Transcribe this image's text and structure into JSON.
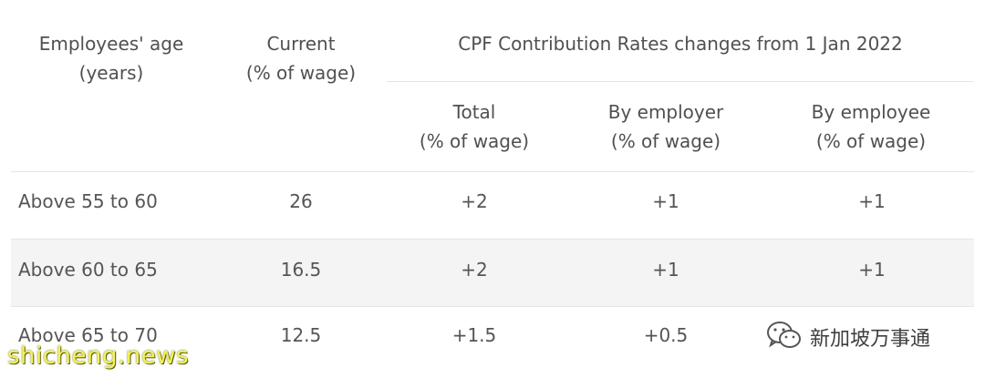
{
  "table": {
    "headers": {
      "age": [
        "Employees' age",
        "(years)"
      ],
      "current": [
        "Current",
        "(% of wage)"
      ],
      "group": "CPF Contribution Rates changes from 1 Jan 2022",
      "total": [
        "Total",
        "(% of wage)"
      ],
      "employer": [
        "By employer",
        "(% of wage)"
      ],
      "employee": [
        "By employee",
        "(% of wage)"
      ]
    },
    "rows": [
      {
        "age": "Above 55 to 60",
        "current": "26",
        "total": "+2",
        "employer": "+1",
        "employee": "+1"
      },
      {
        "age": "Above 60 to 65",
        "current": "16.5",
        "total": "+2",
        "employer": "+1",
        "employee": "+1"
      },
      {
        "age": "Above 65 to 70",
        "current": "12.5",
        "total": "+1.5",
        "employer": "+0.5",
        "employee": ""
      }
    ]
  },
  "overlay": {
    "wechat_account": "新加坡万事通",
    "watermark": "shicheng.news"
  },
  "icons": {
    "wechat": "wechat-icon"
  }
}
